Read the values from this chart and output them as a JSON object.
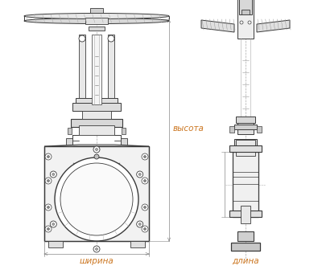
{
  "bg_color": "#ffffff",
  "line_color": "#3a3a3a",
  "dim_color": "#cc7722",
  "dim_line_color": "#888888",
  "hatch_color": "#888888",
  "label_shirina": "ширина",
  "label_dlina": "длина",
  "label_vysota": "высота",
  "fig_width": 4.0,
  "fig_height": 3.46,
  "dpi": 100
}
